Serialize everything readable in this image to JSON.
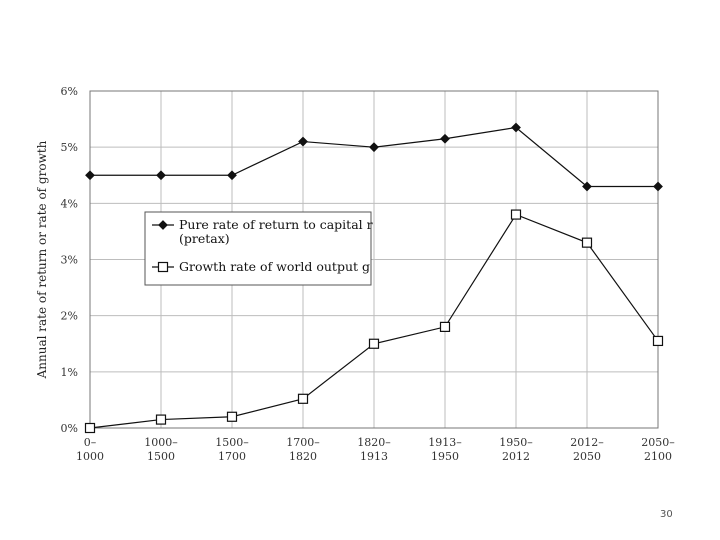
{
  "chart_data": {
    "type": "line",
    "categories": [
      [
        "0–",
        "1000"
      ],
      [
        "1000–",
        "1500"
      ],
      [
        "1500–",
        "1700"
      ],
      [
        "1700–",
        "1820"
      ],
      [
        "1820–",
        "1913"
      ],
      [
        "1913–",
        "1950"
      ],
      [
        "1950–",
        "2012"
      ],
      [
        "2012–",
        "2050"
      ],
      [
        "2050–",
        "2100"
      ]
    ],
    "series": [
      {
        "legend_lines": [
          "Pure rate of return to capital r",
          "(pretax)"
        ],
        "marker": "filled-diamond",
        "color": "#111111",
        "values": [
          4.5,
          4.5,
          4.5,
          5.1,
          5.0,
          5.15,
          5.35,
          4.3,
          4.3
        ]
      },
      {
        "legend_lines": [
          "Growth rate of world output g"
        ],
        "marker": "open-square",
        "color": "#111111",
        "values": [
          0.0,
          0.15,
          0.2,
          0.52,
          1.5,
          1.8,
          3.8,
          3.3,
          1.55
        ]
      }
    ],
    "ylabel": "Annual rate of return or rate of growth",
    "ylim": [
      0,
      6
    ],
    "yticks": [
      "0%",
      "1%",
      "2%",
      "3%",
      "4%",
      "5%",
      "6%"
    ],
    "grid": true,
    "legend_position": "center-left"
  },
  "page_number": "30"
}
